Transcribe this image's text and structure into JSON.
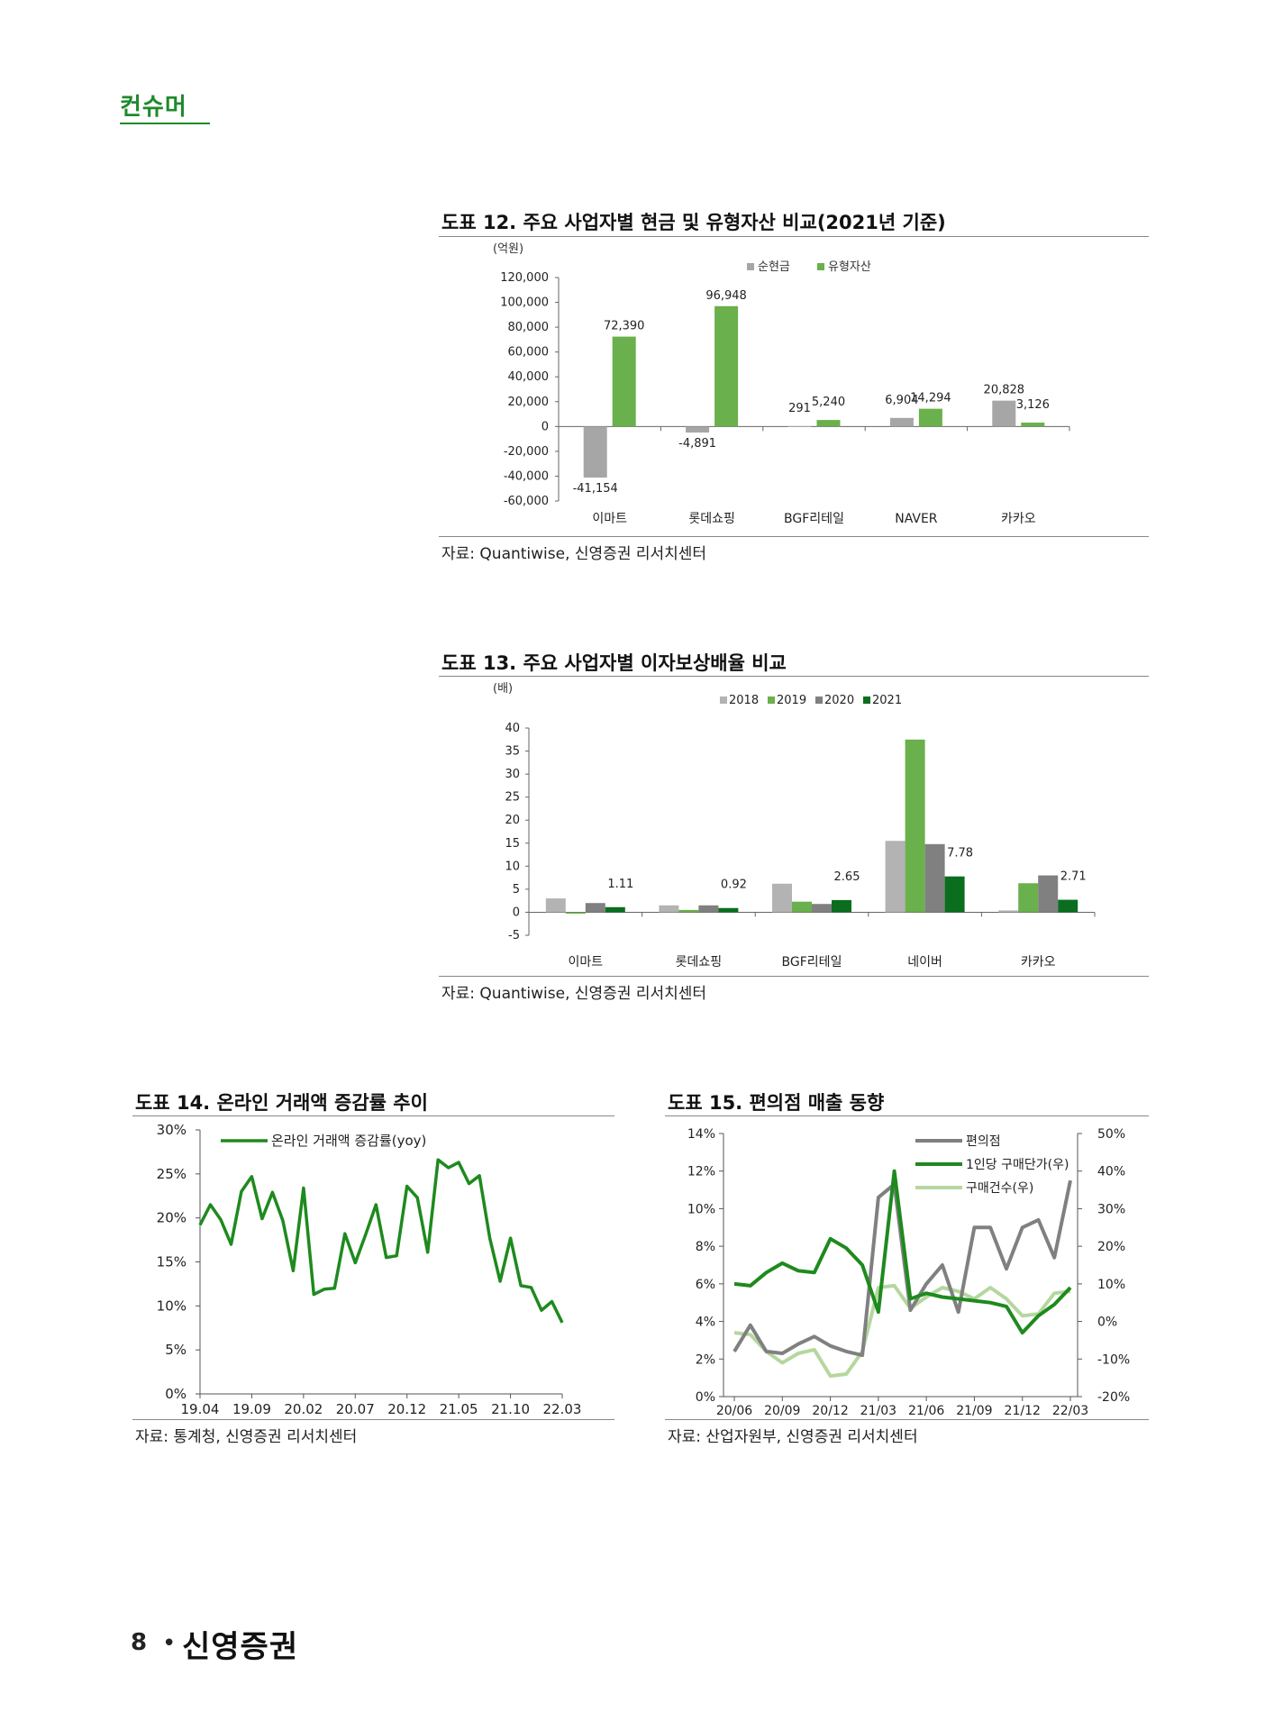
{
  "header": {
    "section": "컨슈머"
  },
  "footer": {
    "page": "8",
    "brand": "신영증권"
  },
  "fig12": {
    "title": "도표 12. 주요 사업자별 현금 및 유형자산 비교(2021년 기준)",
    "source": "자료: Quantiwise, 신영증권 리서치센터",
    "chart_data": {
      "type": "bar",
      "unit": "(억원)",
      "categories": [
        "이마트",
        "롯데쇼핑",
        "BGF리테일",
        "NAVER",
        "카카오"
      ],
      "series": [
        {
          "name": "순현금",
          "values": [
            -41154,
            -4891,
            291,
            6904,
            20828
          ],
          "labels": [
            "-41,154",
            "-4,891",
            "291",
            "6,904",
            "20,828"
          ],
          "color": "#a6a6a6"
        },
        {
          "name": "유형자산",
          "values": [
            72390,
            96948,
            5240,
            14294,
            3126
          ],
          "labels": [
            "72,390",
            "96,948",
            "5,240",
            "14,294",
            "3,126"
          ],
          "color": "#6ab04c"
        }
      ],
      "ylim": [
        -60000,
        120000
      ],
      "yticks": [
        120000,
        100000,
        80000,
        60000,
        40000,
        20000,
        0,
        -20000,
        -40000,
        -60000
      ],
      "yticklabels": [
        "120,000",
        "100,000",
        "80,000",
        "60,000",
        "40,000",
        "20,000",
        "0",
        "-20,000",
        "-40,000",
        "-60,000"
      ],
      "legend": "top-right"
    }
  },
  "fig13": {
    "title": "도표 13. 주요 사업자별 이자보상배율 비교",
    "source": "자료: Quantiwise, 신영증권 리서치센터",
    "chart_data": {
      "type": "bar",
      "unit": "(배)",
      "categories": [
        "이마트",
        "롯데쇼핑",
        "BGF리테일",
        "네이버",
        "카카오"
      ],
      "series": [
        {
          "name": "2018",
          "values": [
            3.0,
            1.5,
            6.2,
            15.5,
            0.4
          ],
          "color": "#b3b3b3"
        },
        {
          "name": "2019",
          "values": [
            -0.3,
            0.5,
            2.3,
            37.5,
            6.3
          ],
          "color": "#6ab04c"
        },
        {
          "name": "2020",
          "values": [
            2.0,
            1.5,
            1.8,
            14.8,
            8.0
          ],
          "color": "#808080"
        },
        {
          "name": "2021",
          "values": [
            1.11,
            0.92,
            2.65,
            7.78,
            2.71
          ],
          "color": "#0a6e1e"
        }
      ],
      "data_labels": [
        "1.11",
        "0.92",
        "2.65",
        "7.78",
        "2.71"
      ],
      "ylim": [
        -5,
        40
      ],
      "yticks": [
        40,
        35,
        30,
        25,
        20,
        15,
        10,
        5,
        0,
        -5
      ],
      "legend": "top"
    }
  },
  "fig14": {
    "title": "도표 14. 온라인 거래액 증감률 추이",
    "source": "자료: 통계청, 신영증권 리서치센터",
    "chart_data": {
      "type": "line",
      "series": [
        {
          "name": "온라인 거래액 증감률(yoy)",
          "color": "#1e8a1e",
          "values": [
            19.2,
            21.5,
            19.8,
            17.0,
            23.0,
            24.7,
            19.9,
            22.9,
            19.7,
            14.0,
            23.4,
            11.3,
            11.9,
            12.0,
            18.2,
            14.9,
            18.1,
            21.5,
            15.5,
            15.7,
            23.6,
            22.3,
            16.1,
            26.6,
            25.7,
            26.3,
            23.9,
            24.8,
            17.7,
            12.8,
            17.7,
            12.3,
            12.1,
            9.5,
            10.5,
            8.1
          ]
        }
      ],
      "xticklabels": [
        "19.04",
        "19.09",
        "20.02",
        "20.07",
        "20.12",
        "21.05",
        "21.10",
        "22.03"
      ],
      "ylim": [
        0,
        30
      ],
      "yticklabels": [
        "0%",
        "5%",
        "10%",
        "15%",
        "20%",
        "25%",
        "30%"
      ],
      "legend": "top-left"
    }
  },
  "fig15": {
    "title": "도표 15. 편의점 매출 동향",
    "source": "자료: 산업자원부, 신영증권 리서치센터",
    "chart_data": {
      "type": "line",
      "series": [
        {
          "name": "편의점",
          "axis": "left",
          "color": "#808080",
          "values": [
            2.4,
            3.8,
            2.4,
            2.3,
            2.8,
            3.2,
            2.7,
            2.4,
            2.2,
            10.6,
            11.3,
            4.6,
            6.0,
            7.0,
            4.5,
            9.0,
            9.0,
            6.8,
            9.0,
            9.4,
            7.4,
            11.5
          ]
        },
        {
          "name": "1인당 구매단가(우)",
          "axis": "right",
          "color": "#1e8a1e",
          "values": [
            10,
            9.5,
            13,
            15.5,
            13.5,
            13,
            22,
            19.5,
            15,
            2.5,
            40,
            6,
            7.5,
            6.5,
            6,
            5.5,
            5,
            4,
            -3,
            1.5,
            4.5,
            9
          ]
        },
        {
          "name": "구매건수(우)",
          "axis": "right",
          "color": "#b5d79f",
          "values": [
            -3,
            -3.5,
            -8,
            -11,
            -8.5,
            -7.5,
            -14.5,
            -14,
            -8,
            9,
            9.5,
            3.5,
            6.5,
            9,
            8,
            6,
            9,
            6,
            1.5,
            2,
            7.5,
            8
          ]
        }
      ],
      "xticklabels": [
        "20/06",
        "20/09",
        "20/12",
        "21/03",
        "21/06",
        "21/09",
        "21/12",
        "22/03"
      ],
      "ylim_left": [
        0,
        14
      ],
      "yticklabels_left": [
        "0%",
        "2%",
        "4%",
        "6%",
        "8%",
        "10%",
        "12%",
        "14%"
      ],
      "ylim_right": [
        -20,
        50
      ],
      "yticklabels_right": [
        "-20%",
        "-10%",
        "0%",
        "10%",
        "20%",
        "30%",
        "40%",
        "50%"
      ],
      "legend": "top-right"
    }
  }
}
